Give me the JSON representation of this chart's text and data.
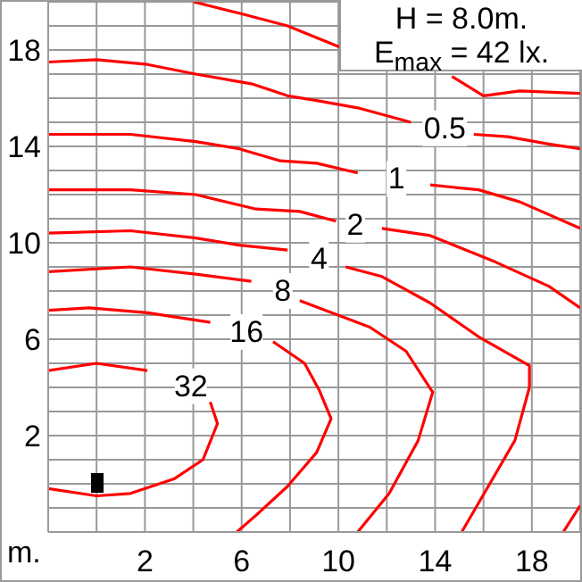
{
  "chart_data": {
    "type": "line",
    "xlabel": "m.",
    "annotations": [
      "H = 8.0m.",
      "E$_{max}$ = 42 lx."
    ],
    "xlim": [
      -2,
      20
    ],
    "ylim": [
      -2,
      20
    ],
    "xticks": [
      {
        "value": -2,
        "label": null
      },
      {
        "value": 0,
        "label": null
      },
      2,
      {
        "value": 4,
        "label": null
      },
      6,
      {
        "value": 8,
        "label": null
      },
      10,
      {
        "value": 12,
        "label": null
      },
      14,
      {
        "value": 16,
        "label": null
      },
      18,
      {
        "value": 20,
        "label": null
      }
    ],
    "yticks": [
      {
        "value": -2,
        "label": null
      },
      {
        "value": -1,
        "label": null
      },
      {
        "value": 0,
        "label": null
      },
      {
        "value": 1,
        "label": null
      },
      2,
      {
        "value": 3,
        "label": null
      },
      {
        "value": 4,
        "label": null
      },
      {
        "value": 5,
        "label": null
      },
      6,
      {
        "value": 7,
        "label": null
      },
      {
        "value": 8,
        "label": null
      },
      {
        "value": 9,
        "label": null
      },
      10,
      {
        "value": 11,
        "label": null
      },
      {
        "value": 12,
        "label": null
      },
      {
        "value": 13,
        "label": null
      },
      14,
      {
        "value": 15,
        "label": null
      },
      {
        "value": 16,
        "label": null
      },
      {
        "value": 17,
        "label": null
      },
      18,
      {
        "value": 19,
        "label": null
      },
      {
        "value": 20,
        "label": null
      }
    ],
    "grid": true,
    "series": [
      {
        "color": "#ff0000",
        "x": [
          4,
          6,
          7.9,
          10.1,
          12.4,
          14.7,
          16,
          17.5,
          20
        ],
        "values": [
          20,
          19.5,
          19,
          18.1,
          null,
          16.9,
          16.1,
          16.3,
          16.2
        ]
      },
      {
        "name": "0.5",
        "color": "#ff0000",
        "x": [
          -2,
          0,
          2.1,
          4.1,
          6.4,
          7.9,
          9.1,
          10.8,
          13,
          14.4,
          15.6,
          17,
          18.7,
          20
        ],
        "values": [
          17.5,
          17.6,
          17.4,
          17,
          16.6,
          16.1,
          15.9,
          15.6,
          15,
          null,
          14.5,
          14.4,
          14.1,
          13.9
        ]
      },
      {
        "name": "1",
        "color": "#ff0000",
        "x": [
          -2,
          1.4,
          4.1,
          5.9,
          7.6,
          9.1,
          10.8,
          12.4,
          13.8,
          15.8,
          17.5,
          20
        ],
        "values": [
          14.5,
          14.5,
          14.2,
          13.9,
          13.4,
          13.3,
          12.9,
          null,
          12.4,
          12.2,
          11.7,
          10.6
        ]
      },
      {
        "name": "2",
        "color": "#ff0000",
        "x": [
          -2,
          1.4,
          4.1,
          6.6,
          8.4,
          9.9,
          10.7,
          11.8,
          13.8,
          16.5,
          18.7,
          20
        ],
        "values": [
          12.2,
          12.2,
          12,
          11.4,
          11.3,
          10.9,
          null,
          10.6,
          10.3,
          9.2,
          8.2,
          7.3
        ]
      },
      {
        "color": "#ff0000",
        "x": [
          19.3,
          20
        ],
        "values": [
          -2,
          -0.9
        ]
      },
      {
        "name": "4",
        "color": "#ff0000",
        "x": [
          -2,
          1.4,
          4.1,
          5.9,
          7.9,
          9.2,
          10.3,
          11.8,
          13.8,
          15.8,
          17.9,
          17.9,
          17.3,
          16.2,
          15.1
        ],
        "values": [
          10.4,
          10.5,
          10.2,
          9.9,
          9.7,
          null,
          9,
          8.6,
          7.5,
          6.1,
          4.9,
          4,
          1.8,
          -0.1,
          -2
        ]
      },
      {
        "name": "8",
        "color": "#ff0000",
        "x": [
          -2,
          1.4,
          4.1,
          6.4,
          7.7,
          8.4,
          11.3,
          12.8,
          13.9,
          13.3,
          12.1,
          10.8
        ],
        "values": [
          8.8,
          9,
          8.7,
          8.4,
          null,
          7.6,
          6.5,
          5.5,
          3.8,
          1.8,
          -0.4,
          -2
        ]
      },
      {
        "name": "16",
        "color": "#ff0000",
        "x": [
          -2,
          -0.3,
          2.1,
          4.7,
          6.2,
          7.3,
          8.6,
          9.2,
          9.7,
          9.1,
          7.9,
          6.6,
          5.8
        ],
        "values": [
          7.2,
          7.3,
          7.1,
          6.7,
          null,
          5.9,
          5,
          3.9,
          2.7,
          1.3,
          -0.1,
          -1.3,
          -2
        ]
      },
      {
        "name": "32",
        "color": "#ff0000",
        "x": [
          -2,
          0,
          2.1,
          3.9,
          4.7,
          5,
          4.4,
          3.2,
          1.4,
          0,
          -2
        ],
        "values": [
          4.7,
          5,
          4.7,
          null,
          3.4,
          2.5,
          1,
          0.2,
          -0.4,
          -0.5,
          -0.2
        ]
      }
    ]
  }
}
